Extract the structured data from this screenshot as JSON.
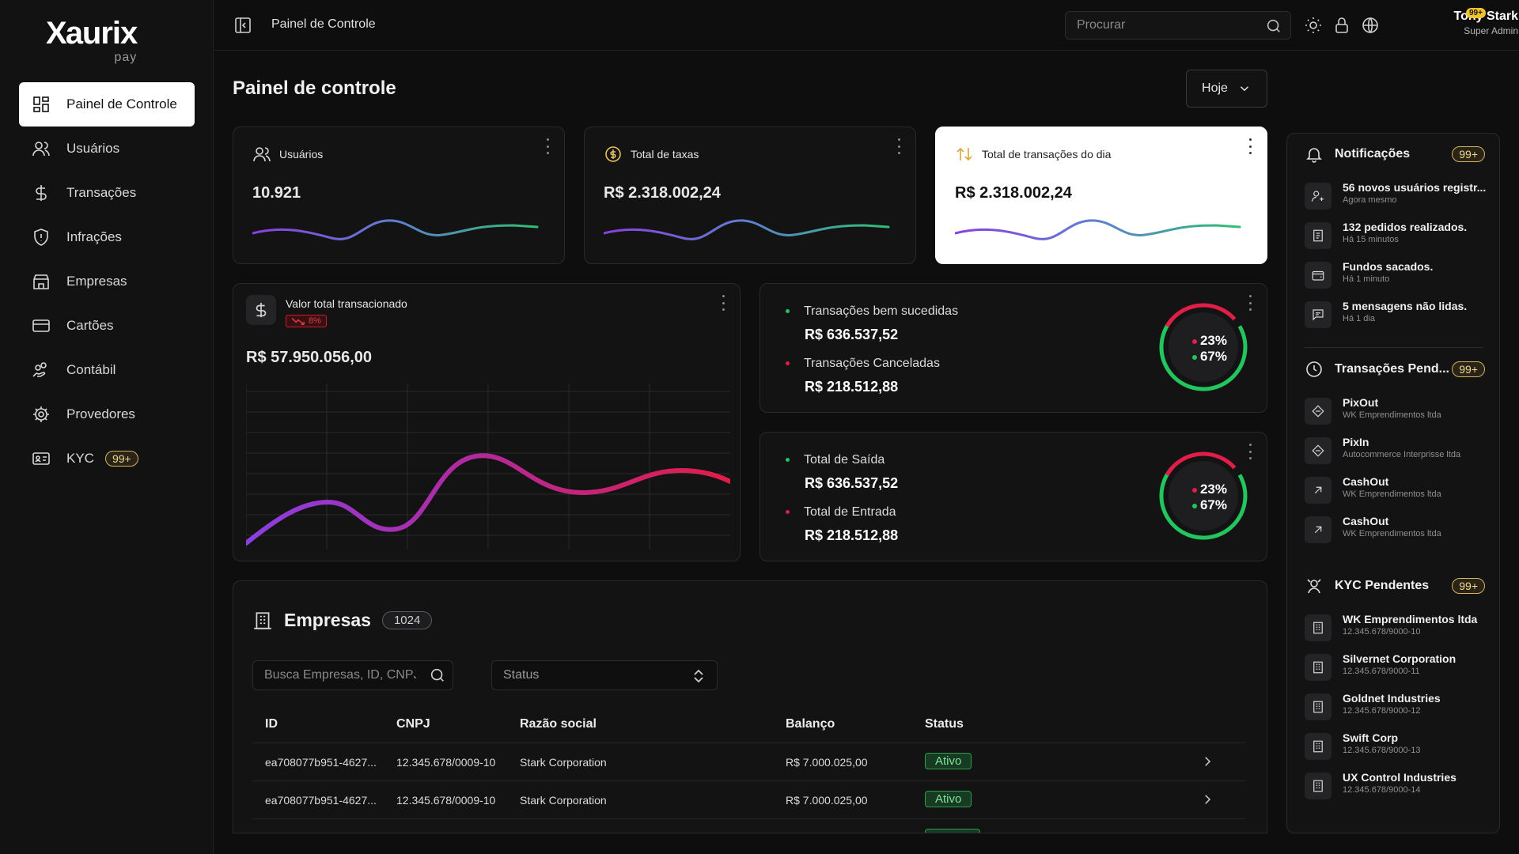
{
  "brand": {
    "logo_mark": "X",
    "logo_word": "aurix",
    "logo_sub": "pay"
  },
  "sidebar": {
    "items": [
      {
        "label": "Painel de Controle",
        "icon": "dashboard-icon",
        "active": true
      },
      {
        "label": "Usuários",
        "icon": "users-icon"
      },
      {
        "label": "Transações",
        "icon": "dollar-icon"
      },
      {
        "label": "Infrações",
        "icon": "shield-alert-icon"
      },
      {
        "label": "Empresas",
        "icon": "store-icon"
      },
      {
        "label": "Cartões",
        "icon": "card-icon"
      },
      {
        "label": "Contábil",
        "icon": "hand-coins-icon"
      },
      {
        "label": "Provedores",
        "icon": "gear-icon"
      },
      {
        "label": "KYC",
        "icon": "id-card-icon",
        "badge": "99+"
      }
    ]
  },
  "topbar": {
    "breadcrumb": "Painel de Controle",
    "search_placeholder": "Procurar",
    "user_name": "Tony Stark",
    "user_role": "Super Admin",
    "user_badge": "99+"
  },
  "page": {
    "title": "Painel de controle",
    "period": "Hoje"
  },
  "stats": [
    {
      "label": "Usuários",
      "value": "10.921"
    },
    {
      "label": "Total de taxas",
      "value": "R$ 2.318.002,24"
    },
    {
      "label": "Total de transações do dia",
      "value": "R$ 2.318.002,24"
    }
  ],
  "valor_total": {
    "label": "Valor total transacionado",
    "trend": "8%",
    "value": "R$ 57.950.056,00"
  },
  "summary_1": {
    "row1_label": "Transações bem sucedidas",
    "row1_value": "R$ 636.537,52",
    "row2_label": "Transações Canceladas",
    "row2_value": "R$ 218.512,88",
    "pct_red": "23%",
    "pct_green": "67%"
  },
  "summary_2": {
    "row1_label": "Total de Saída",
    "row1_value": "R$ 636.537,52",
    "row2_label": "Total de Entrada",
    "row2_value": "R$ 218.512,88",
    "pct_red": "23%",
    "pct_green": "67%"
  },
  "empresas": {
    "title": "Empresas",
    "count": "1024",
    "search_placeholder": "Busca Empresas, ID, CNPJ",
    "status_placeholder": "Status",
    "columns": [
      "ID",
      "CNPJ",
      "Razão social",
      "Balanço",
      "Status"
    ],
    "rows": [
      {
        "id": "ea708077b951-4627...",
        "cnpj": "12.345.678/0009-10",
        "razao": "Stark Corporation",
        "balanco": "R$ 7.000.025,00",
        "status": "Ativo"
      },
      {
        "id": "ea708077b951-4627...",
        "cnpj": "12.345.678/0009-10",
        "razao": "Stark Corporation",
        "balanco": "R$ 7.000.025,00",
        "status": "Ativo"
      }
    ]
  },
  "notificacoes": {
    "title": "Notificações",
    "badge": "99+",
    "items": [
      {
        "title": "56 novos usuários registr...",
        "sub": "Agora mesmo"
      },
      {
        "title": "132 pedidos realizados.",
        "sub": "Há 15 minutos"
      },
      {
        "title": "Fundos sacados.",
        "sub": "Há 1 minuto"
      },
      {
        "title": "5 mensagens não lidas.",
        "sub": "Há 1 dia"
      }
    ]
  },
  "pendentes": {
    "title": "Transações Pend...",
    "badge": "99+",
    "items": [
      {
        "title": "PixOut",
        "sub": "WK Emprendimentos ltda"
      },
      {
        "title": "PixIn",
        "sub": "Autocommerce Interprisse ltda"
      },
      {
        "title": "CashOut",
        "sub": "WK Emprendimentos ltda"
      },
      {
        "title": "CashOut",
        "sub": "WK Emprendimentos ltda"
      }
    ]
  },
  "kyc": {
    "title": "KYC Pendentes",
    "badge": "99+",
    "items": [
      {
        "title": "WK Emprendimentos ltda",
        "sub": "12.345.678/9000-10"
      },
      {
        "title": "Silvernet Corporation",
        "sub": "12.345.678/9000-11"
      },
      {
        "title": "Goldnet Industries",
        "sub": "12.345.678/9000-12"
      },
      {
        "title": "Swift Corp",
        "sub": "12.345.678/9000-13"
      },
      {
        "title": "UX Control Industries",
        "sub": "12.345.678/9000-14"
      }
    ]
  },
  "colors": {
    "accent_red": "#e11d48",
    "accent_green": "#22c55e",
    "badge_gold": "#d4b45a"
  }
}
